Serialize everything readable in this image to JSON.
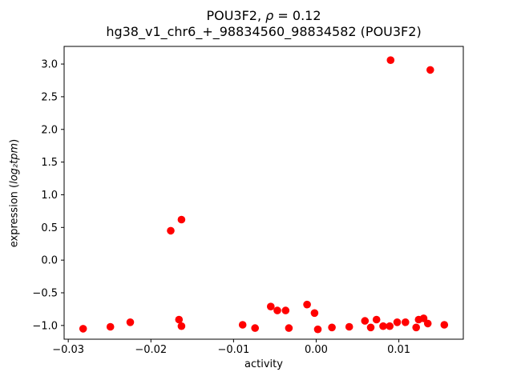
{
  "figure": {
    "title_prefix": "POU3F2, ",
    "title_rho": "ρ",
    "title_suffix": " = 0.12",
    "subtitle": "hg38_v1_chr6_+_98834560_98834582 (POU3F2)",
    "xlabel": "activity",
    "ylabel_prefix": "expression (",
    "ylabel_math": "log₂tpm",
    "ylabel_suffix": ")"
  },
  "chart_data": {
    "type": "scatter",
    "title": "POU3F2, ρ = 0.12",
    "subtitle": "hg38_v1_chr6_+_98834560_98834582 (POU3F2)",
    "xlabel": "activity",
    "ylabel": "expression (log₂tpm)",
    "marker_color": "#ff0000",
    "marker_radius": 4.8,
    "axis_color": "#000000",
    "grid": false,
    "legend_position": "none",
    "xlim": [
      -0.0305,
      0.0178
    ],
    "ylim": [
      -1.21,
      3.27
    ],
    "xticks": [
      -0.03,
      -0.02,
      -0.01,
      0.0,
      0.01
    ],
    "xtick_labels": [
      "−0.03",
      "−0.02",
      "−0.01",
      "0.00",
      "0.01"
    ],
    "yticks": [
      3.0,
      2.5,
      2.0,
      1.5,
      1.0,
      0.5,
      0.0,
      -0.5,
      -1.0
    ],
    "ytick_labels": [
      "3.0",
      "2.5",
      "2.0",
      "1.5",
      "1.0",
      "0.5",
      "0.0",
      "−0.5",
      "−1.0"
    ],
    "points": [
      [
        -0.0282,
        -1.05
      ],
      [
        -0.0249,
        -1.02
      ],
      [
        -0.0225,
        -0.95
      ],
      [
        -0.0176,
        0.45
      ],
      [
        -0.0163,
        0.62
      ],
      [
        -0.0166,
        -0.91
      ],
      [
        -0.0163,
        -1.01
      ],
      [
        -0.0089,
        -0.99
      ],
      [
        -0.0074,
        -1.04
      ],
      [
        -0.0055,
        -0.71
      ],
      [
        -0.0047,
        -0.77
      ],
      [
        -0.0037,
        -0.77
      ],
      [
        -0.0033,
        -1.04
      ],
      [
        -0.0011,
        -0.68
      ],
      [
        -0.0002,
        -0.81
      ],
      [
        0.0002,
        -1.06
      ],
      [
        0.0019,
        -1.03
      ],
      [
        0.004,
        -1.02
      ],
      [
        0.0059,
        -0.93
      ],
      [
        0.0066,
        -1.03
      ],
      [
        0.0073,
        -0.91
      ],
      [
        0.0081,
        -1.01
      ],
      [
        0.0089,
        -1.01
      ],
      [
        0.009,
        3.06
      ],
      [
        0.0098,
        -0.95
      ],
      [
        0.0108,
        -0.95
      ],
      [
        0.0121,
        -1.03
      ],
      [
        0.0124,
        -0.91
      ],
      [
        0.013,
        -0.89
      ],
      [
        0.0135,
        -0.97
      ],
      [
        0.0138,
        2.91
      ],
      [
        0.0155,
        -0.99
      ]
    ]
  }
}
